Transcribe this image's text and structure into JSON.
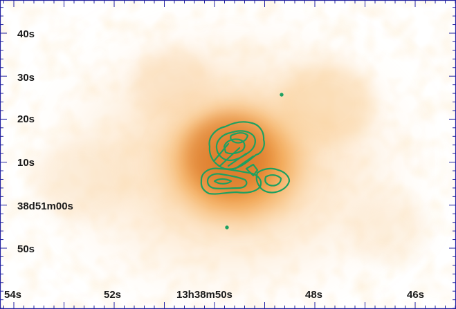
{
  "image": {
    "kind": "astronomical sky image with green contour overlay and coordinate axes",
    "colormap": "orange heat on white",
    "contour_color": "#1ea060",
    "axis_color": "#2020a0"
  },
  "axes": {
    "y_ticks": [
      "40s",
      "30s",
      "20s",
      "10s",
      "38d51m00s",
      "50s"
    ],
    "x_ticks": [
      "54s",
      "52s",
      "13h38m50s",
      "48s",
      "46s"
    ]
  }
}
